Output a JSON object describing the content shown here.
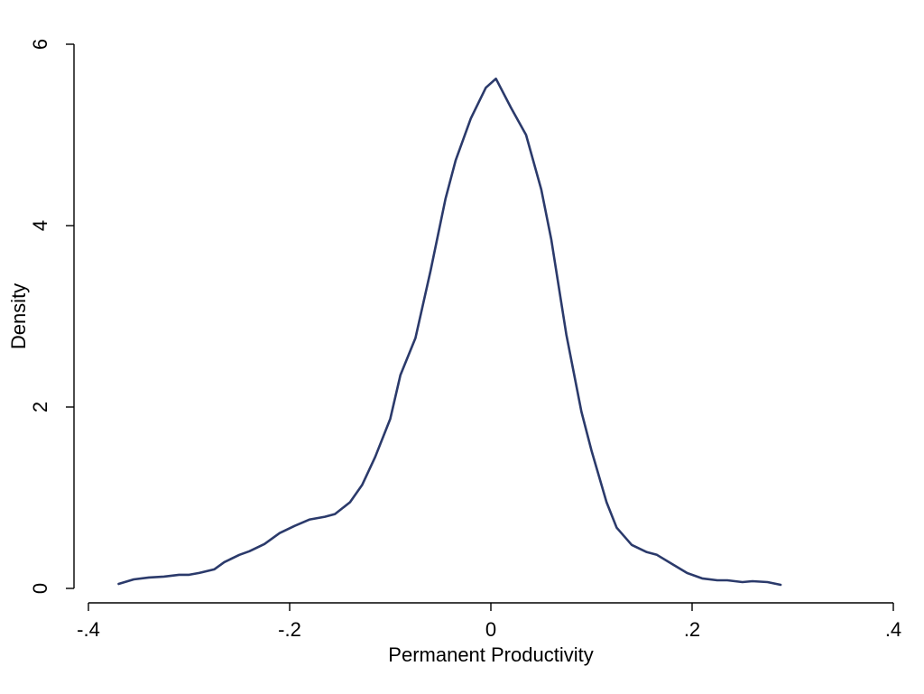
{
  "chart_data": {
    "type": "line",
    "title": "",
    "xlabel": "Permanent Productivity",
    "ylabel": "Density",
    "xlim": [
      -0.4,
      0.4
    ],
    "ylim": [
      0,
      6
    ],
    "grid": false,
    "line_color": "#2b3a6b",
    "x_ticks": [
      {
        "value": -0.4,
        "label": "-.4"
      },
      {
        "value": -0.2,
        "label": "-.2"
      },
      {
        "value": 0,
        "label": "0"
      },
      {
        "value": 0.2,
        "label": ".2"
      },
      {
        "value": 0.4,
        "label": ".4"
      }
    ],
    "y_ticks": [
      {
        "value": 0,
        "label": "0"
      },
      {
        "value": 2,
        "label": "2"
      },
      {
        "value": 4,
        "label": "4"
      },
      {
        "value": 6,
        "label": "6"
      }
    ],
    "series": [
      {
        "x": [
          -0.37,
          -0.355,
          -0.34,
          -0.325,
          -0.31,
          -0.3,
          -0.29,
          -0.275,
          -0.265,
          -0.25,
          -0.24,
          -0.225,
          -0.21,
          -0.195,
          -0.18,
          -0.165,
          -0.155,
          -0.14,
          -0.128,
          -0.115,
          -0.1,
          -0.09,
          -0.075,
          -0.06,
          -0.045,
          -0.035,
          -0.02,
          -0.005,
          0.005,
          0.02,
          0.035,
          0.05,
          0.06,
          0.075,
          0.09,
          0.1,
          0.115,
          0.125,
          0.14,
          0.155,
          0.165,
          0.18,
          0.195,
          0.21,
          0.225,
          0.235,
          0.25,
          0.26,
          0.275,
          0.288
        ],
        "y": [
          0.05,
          0.1,
          0.12,
          0.13,
          0.15,
          0.15,
          0.17,
          0.21,
          0.29,
          0.37,
          0.41,
          0.49,
          0.61,
          0.69,
          0.76,
          0.79,
          0.82,
          0.95,
          1.14,
          1.45,
          1.87,
          2.35,
          2.76,
          3.5,
          4.3,
          4.72,
          5.18,
          5.52,
          5.62,
          5.3,
          5.0,
          4.4,
          3.85,
          2.8,
          1.95,
          1.52,
          0.95,
          0.67,
          0.48,
          0.4,
          0.37,
          0.27,
          0.17,
          0.11,
          0.09,
          0.09,
          0.07,
          0.08,
          0.07,
          0.04
        ]
      }
    ]
  }
}
